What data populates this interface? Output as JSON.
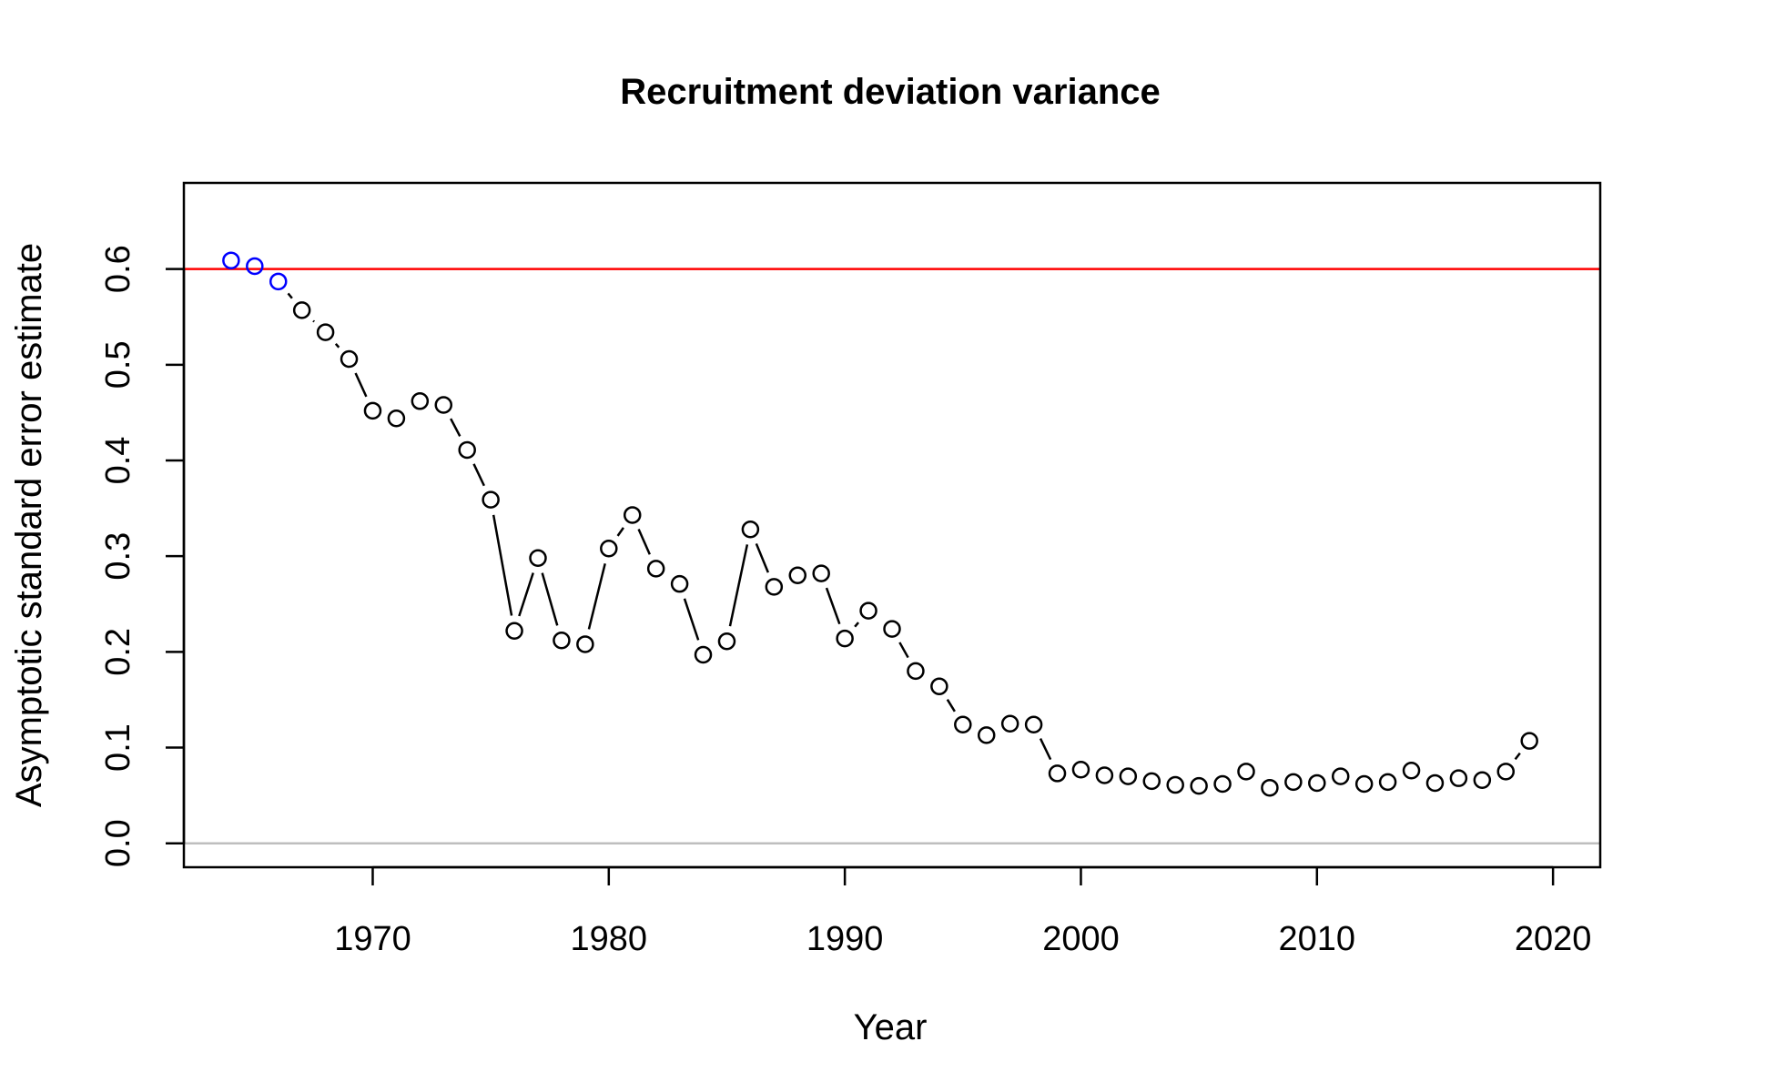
{
  "chart_data": {
    "type": "line",
    "title": "Recruitment deviation variance",
    "xlabel": "Year",
    "ylabel": "Asymptotic standard error estimate",
    "xlim": [
      1962,
      2022
    ],
    "ylim": [
      -0.025,
      0.69
    ],
    "x_ticks": [
      1970,
      1980,
      1990,
      2000,
      2010,
      2020
    ],
    "y_ticks": [
      0.0,
      0.1,
      0.2,
      0.3,
      0.4,
      0.5,
      0.6
    ],
    "x_tick_labels": [
      "1970",
      "1980",
      "1990",
      "2000",
      "2010",
      "2020"
    ],
    "y_tick_labels": [
      "0.0",
      "0.1",
      "0.2",
      "0.3",
      "0.4",
      "0.5",
      "0.6"
    ],
    "grid": false,
    "reference_lines": [
      {
        "y": 0.6,
        "color": "#ff0000"
      },
      {
        "y": 0.0,
        "color": "#bebebe"
      }
    ],
    "colors": {
      "points": "#000000",
      "highlight": "#0000ff",
      "line": "#000000"
    },
    "x": [
      1964,
      1965,
      1966,
      1967,
      1968,
      1969,
      1970,
      1971,
      1972,
      1973,
      1974,
      1975,
      1976,
      1977,
      1978,
      1979,
      1980,
      1981,
      1982,
      1983,
      1984,
      1985,
      1986,
      1987,
      1988,
      1989,
      1990,
      1991,
      1992,
      1993,
      1994,
      1995,
      1996,
      1997,
      1998,
      1999,
      2000,
      2001,
      2002,
      2003,
      2004,
      2005,
      2006,
      2007,
      2008,
      2009,
      2010,
      2011,
      2012,
      2013,
      2014,
      2015,
      2016,
      2017,
      2018,
      2019
    ],
    "values": [
      0.609,
      0.603,
      0.587,
      0.557,
      0.534,
      0.506,
      0.452,
      0.444,
      0.462,
      0.458,
      0.411,
      0.359,
      0.222,
      0.298,
      0.212,
      0.208,
      0.308,
      0.343,
      0.287,
      0.271,
      0.197,
      0.211,
      0.328,
      0.268,
      0.28,
      0.282,
      0.214,
      0.243,
      0.224,
      0.18,
      0.164,
      0.124,
      0.113,
      0.125,
      0.124,
      0.073,
      0.077,
      0.071,
      0.07,
      0.065,
      0.061,
      0.06,
      0.062,
      0.075,
      0.058,
      0.064,
      0.063,
      0.07,
      0.062,
      0.064,
      0.076,
      0.063,
      0.068,
      0.066,
      0.075,
      0.107
    ],
    "highlight_x": [
      1964,
      1965,
      1966
    ]
  }
}
